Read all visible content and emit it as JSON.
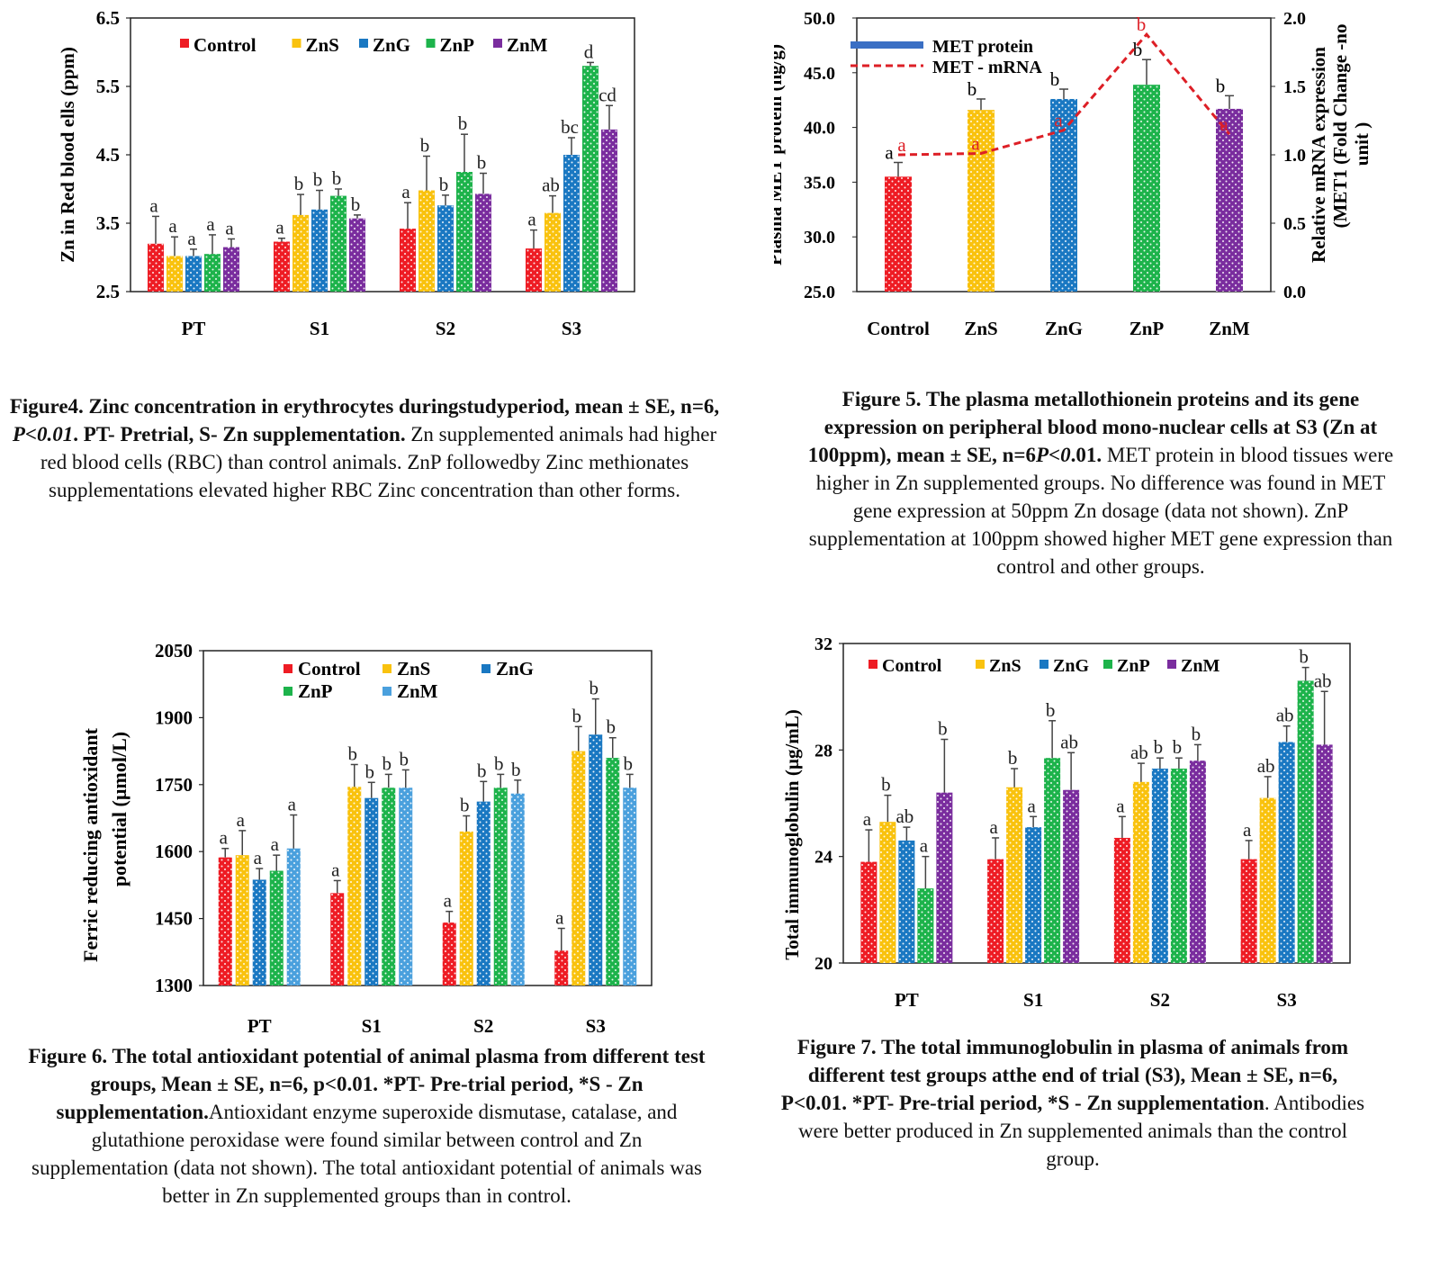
{
  "colors": {
    "Control": "#ee1c24",
    "ZnS": "#f9c20e",
    "ZnG": "#1a78c2",
    "ZnG_light": "#4aa0dd",
    "ZnP": "#1db34b",
    "ZnM": "#7a2d9e",
    "line": "#dd1f26"
  },
  "charts": [
    {
      "id": "fig4",
      "chart_data": {
        "type": "bar",
        "categories": [
          "PT",
          "S1",
          "S2",
          "S3"
        ],
        "ylabel": "Zn in Red blood ells  (ppm)",
        "ylim": [
          2.5,
          6.5
        ],
        "yticks": [
          "2.5",
          "3.5",
          "4.5",
          "5.5",
          "6.5"
        ],
        "legend": [
          "Control",
          "ZnS",
          "ZnG",
          "ZnP",
          "ZnM"
        ],
        "series": [
          {
            "name": "Control",
            "values": [
              3.2,
              3.23,
              3.42,
              3.13
            ],
            "err": [
              0.4,
              0.05,
              0.38,
              0.27
            ],
            "letters": [
              "a",
              "a",
              "a",
              "a"
            ]
          },
          {
            "name": "ZnS",
            "values": [
              3.02,
              3.62,
              3.98,
              3.65
            ],
            "err": [
              0.28,
              0.3,
              0.5,
              0.25
            ],
            "letters": [
              "a",
              "b",
              "b",
              "ab"
            ]
          },
          {
            "name": "ZnG",
            "values": [
              3.02,
              3.7,
              3.76,
              4.5
            ],
            "err": [
              0.1,
              0.28,
              0.15,
              0.25
            ],
            "letters": [
              "a",
              "b",
              "b",
              "bc"
            ]
          },
          {
            "name": "ZnP",
            "values": [
              3.05,
              3.9,
              4.25,
              5.8
            ],
            "err": [
              0.28,
              0.1,
              0.55,
              0.05
            ],
            "letters": [
              "a",
              "b",
              "b",
              "d"
            ]
          },
          {
            "name": "ZnM",
            "values": [
              3.15,
              3.57,
              3.93,
              4.87
            ],
            "err": [
              0.12,
              0.05,
              0.3,
              0.35
            ],
            "letters": [
              "a",
              "b",
              "b",
              "cd"
            ]
          }
        ]
      },
      "caption_bold": "Figure4.  Zinc concentration in erythrocytes duringstudyperiod, mean ± SE, n=6, ",
      "caption_italic": "P<0.01",
      "caption_bold2": ". PT- Pretrial, S- Zn supplementation.",
      "caption_rest": " Zn supplemented animals had higher red blood cells (RBC) than control animals. ZnP followedby Zinc methionates supplementations elevated higher RBC Zinc concentration than other forms."
    },
    {
      "id": "fig5",
      "chart_data": {
        "type": "bar+line",
        "categories": [
          "Control",
          "ZnS",
          "ZnG",
          "ZnP",
          "ZnM"
        ],
        "ylabel": "Plasma MET protein (ng/g)",
        "y2label_line1": "Relative mRNA expression",
        "y2label_line2": "(MET1 (Fold Change -no",
        "y2label_line3": "unit )",
        "ylim": [
          25,
          50
        ],
        "yticks": [
          "25.0",
          "30.0",
          "35.0",
          "40.0",
          "45.0",
          "50.0"
        ],
        "y2lim": [
          0,
          2
        ],
        "y2ticks": [
          "0.0",
          "0.5",
          "1.0",
          "1.5",
          "2.0"
        ],
        "legend": [
          "MET protein",
          "MET - mRNA"
        ],
        "protein": {
          "name": "MET protein",
          "values": [
            35.5,
            41.6,
            42.6,
            43.9,
            41.7
          ],
          "err": [
            1.3,
            1.0,
            0.9,
            2.3,
            1.2
          ],
          "letters": [
            "a",
            "b",
            "b",
            "b",
            "b"
          ]
        },
        "mrna": {
          "name": "MET - mRNA",
          "values": [
            1.0,
            1.01,
            1.18,
            1.88,
            1.15
          ],
          "letters": [
            "a",
            "a",
            "a",
            "b",
            "a"
          ]
        }
      },
      "caption_bold": "Figure 5.  The plasma metallothionein proteins and its gene expression on peripheral blood mono-nuclear cells at S3 (Zn at 100ppm), mean ± SE, n=6",
      "caption_italic": "P<0",
      "caption_bold2": ".01.",
      "caption_rest": " MET protein in blood tissues were higher in Zn supplemented groups. No difference was found in MET gene expression at 50ppm Zn dosage (data not shown). ZnP supplementation at 100ppm showed higher MET gene expression than control and other groups."
    },
    {
      "id": "fig6",
      "chart_data": {
        "type": "bar",
        "categories": [
          "PT",
          "S1",
          "S2",
          "S3"
        ],
        "ylabel_line1": "Ferric reducing antioxidant",
        "ylabel_line2": "potential (µmol/L)",
        "ylim": [
          1300,
          2050
        ],
        "yticks": [
          "1300",
          "1450",
          "1600",
          "1750",
          "1900",
          "2050"
        ],
        "legend": [
          "Control",
          "ZnS",
          "ZnG",
          "ZnP",
          "ZnM"
        ],
        "series": [
          {
            "name": "Control",
            "values": [
              1587,
              1507,
              1441,
              1378
            ],
            "err": [
              20,
              28,
              25,
              50
            ],
            "letters": [
              "a",
              "a",
              "a",
              "a"
            ]
          },
          {
            "name": "ZnS",
            "values": [
              1592,
              1745,
              1645,
              1825
            ],
            "err": [
              55,
              50,
              35,
              55
            ],
            "letters": [
              "a",
              "b",
              "b",
              "b"
            ]
          },
          {
            "name": "ZnG",
            "values": [
              1537,
              1720,
              1712,
              1862
            ],
            "err": [
              25,
              35,
              45,
              80
            ],
            "letters": [
              "a",
              "b",
              "b",
              "b"
            ]
          },
          {
            "name": "ZnP",
            "values": [
              1557,
              1743,
              1743,
              1810
            ],
            "err": [
              35,
              30,
              30,
              45
            ],
            "letters": [
              "a",
              "b",
              "b",
              "b"
            ]
          },
          {
            "name": "ZnM",
            "values": [
              1607,
              1743,
              1730,
              1743
            ],
            "err": [
              75,
              40,
              30,
              30
            ],
            "letters": [
              "a",
              "b",
              "b",
              "b"
            ]
          }
        ]
      },
      "caption_bold": "Figure 6.  The total antioxidant potential of animal plasma from different test groups, Mean ± SE, n=6, p<0.01. *PT- Pre-trial period, *S - Zn supplementation.",
      "caption_italic": "",
      "caption_bold2": "",
      "caption_rest": "Antioxidant enzyme superoxide dismutase, catalase, and glutathione peroxidase were found similar between control and Zn supplementation (data not shown). The total antioxidant potential of animals was better in Zn supplemented groups than in control."
    },
    {
      "id": "fig7",
      "chart_data": {
        "type": "bar",
        "categories": [
          "PT",
          "S1",
          "S2",
          "S3"
        ],
        "ylabel": "Total immunoglobulin (µg/mL)",
        "ylim": [
          20,
          32
        ],
        "yticks": [
          "20",
          "24",
          "28",
          "32"
        ],
        "legend": [
          "Control",
          "ZnS",
          "ZnG",
          "ZnP",
          "ZnM"
        ],
        "series": [
          {
            "name": "Control",
            "values": [
              23.8,
              23.9,
              24.7,
              23.9
            ],
            "err": [
              1.2,
              0.8,
              0.8,
              0.7
            ],
            "letters": [
              "a",
              "a",
              "a",
              "a"
            ]
          },
          {
            "name": "ZnS",
            "values": [
              25.3,
              26.6,
              26.8,
              26.2
            ],
            "err": [
              1.0,
              0.7,
              0.7,
              0.8
            ],
            "letters": [
              "b",
              "b",
              "ab",
              "ab"
            ]
          },
          {
            "name": "ZnG",
            "values": [
              24.6,
              25.1,
              27.3,
              28.3
            ],
            "err": [
              0.5,
              0.4,
              0.4,
              0.6
            ],
            "letters": [
              "ab",
              "a",
              "b",
              "ab"
            ]
          },
          {
            "name": "ZnP",
            "values": [
              22.8,
              27.7,
              27.3,
              30.6
            ],
            "err": [
              1.2,
              1.4,
              0.4,
              0.5
            ],
            "letters": [
              "a",
              "b",
              "b",
              "b"
            ]
          },
          {
            "name": "ZnM",
            "values": [
              26.4,
              26.5,
              27.6,
              28.2
            ],
            "err": [
              2.0,
              1.4,
              0.6,
              2.0
            ],
            "letters": [
              "b",
              "ab",
              "b",
              "ab"
            ]
          }
        ]
      },
      "caption_bold": "Figure 7. The total immunoglobulin in plasma of animals from different test groups atthe end of trial (S3), Mean ± SE, n=6, P<0.01. *PT- Pre-trial period, *S - Zn supplementation",
      "caption_italic": "",
      "caption_bold2": "",
      "caption_rest": ". Antibodies were better produced in Zn supplemented animals than the control group."
    }
  ]
}
